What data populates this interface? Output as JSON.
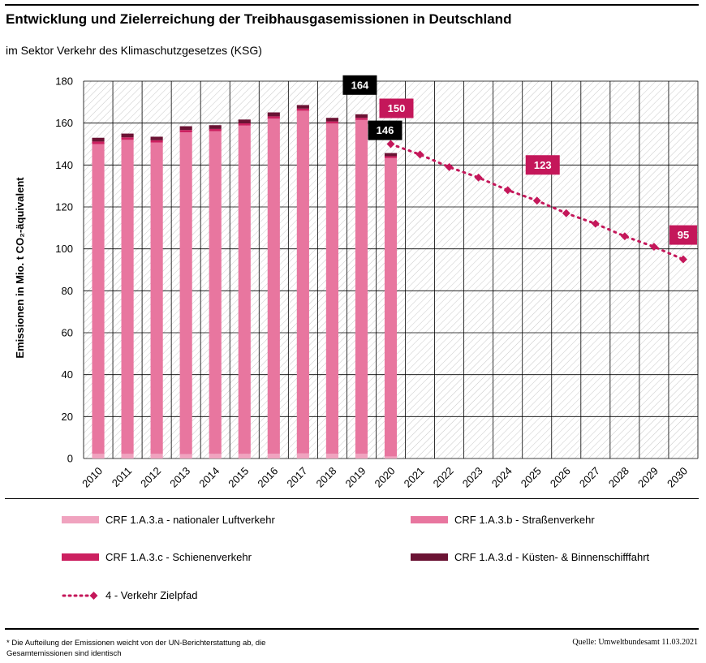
{
  "header": {
    "title": "Entwicklung und Zielerreichung der Treibhausgasemissionen in Deutschland",
    "subtitle": "im Sektor Verkehr des Klimaschutzgesetzes (KSG)"
  },
  "footer": {
    "footnote": "* Die Aufteilung der Emissionen weicht von der UN-Berichterstattung ab, die Gesamtemissionen sind identisch",
    "source": "Quelle: Umweltbundesamt  11.03.2021"
  },
  "colors": {
    "luftverkehr": "#f0a3bf",
    "strassenverkehr": "#e8769f",
    "schienenverkehr": "#cc2060",
    "schifffahrt": "#6b1334",
    "zielpfad": "#c4175a",
    "label_dark": "#000000",
    "label_target": "#c4175a"
  },
  "chart_data": {
    "type": "bar",
    "stacked": true,
    "ylabel": "Emissionen in Mio. t CO₂-äquivalent",
    "xlabel": "",
    "ylim": [
      0,
      180
    ],
    "yticks": [
      0,
      20,
      40,
      60,
      80,
      100,
      120,
      140,
      160,
      180
    ],
    "grid": true,
    "categories": [
      "2010",
      "2011",
      "2012",
      "2013",
      "2014",
      "2015",
      "2016",
      "2017",
      "2018",
      "2019",
      "2020",
      "2021",
      "2022",
      "2023",
      "2024",
      "2025",
      "2026",
      "2027",
      "2028",
      "2029",
      "2030"
    ],
    "series": [
      {
        "name": "CRF 1.A.3.a - nationaler Luftverkehr",
        "type": "bar",
        "color_key": "luftverkehr",
        "values": [
          2.2,
          2.2,
          2.2,
          2.1,
          2.2,
          2.2,
          2.3,
          2.4,
          2.3,
          2.3,
          1.0,
          null,
          null,
          null,
          null,
          null,
          null,
          null,
          null,
          null,
          null
        ]
      },
      {
        "name": "CRF 1.A.3.b - Straßenverkehr",
        "type": "bar",
        "color_key": "strassenverkehr",
        "values": [
          147.8,
          149.8,
          148.5,
          153.5,
          153.9,
          156.6,
          159.8,
          163.5,
          157.5,
          159.2,
          142.3,
          null,
          null,
          null,
          null,
          null,
          null,
          null,
          null,
          null,
          null
        ]
      },
      {
        "name": "CRF 1.A.3.c - Schienenverkehr",
        "type": "bar",
        "color_key": "schienenverkehr",
        "values": [
          1.2,
          1.2,
          1.1,
          1.1,
          1.1,
          1.1,
          1.1,
          1.0,
          1.0,
          1.0,
          0.9,
          null,
          null,
          null,
          null,
          null,
          null,
          null,
          null,
          null,
          null
        ]
      },
      {
        "name": "CRF 1.A.3.d - Küsten- & Binnenschifffahrt",
        "type": "bar",
        "color_key": "schifffahrt",
        "values": [
          1.8,
          1.8,
          1.7,
          1.8,
          1.8,
          1.8,
          1.9,
          1.7,
          1.7,
          1.7,
          1.5,
          null,
          null,
          null,
          null,
          null,
          null,
          null,
          null,
          null,
          null
        ]
      },
      {
        "name": "4 - Verkehr Zielpfad",
        "type": "line",
        "style": "dotted",
        "color_key": "zielpfad",
        "values": [
          null,
          null,
          null,
          null,
          null,
          null,
          null,
          null,
          null,
          null,
          150,
          145,
          139,
          134,
          128,
          123,
          117,
          112,
          106,
          101,
          95
        ]
      }
    ],
    "annotations": [
      {
        "category": "2019",
        "text": "164",
        "style": "dark"
      },
      {
        "category": "2020",
        "text": "146",
        "style": "dark"
      },
      {
        "category": "2020",
        "text": "150",
        "style": "target"
      },
      {
        "category": "2025",
        "text": "123",
        "style": "target"
      },
      {
        "category": "2030",
        "text": "95",
        "style": "target"
      }
    ],
    "legend_position": "bottom"
  }
}
